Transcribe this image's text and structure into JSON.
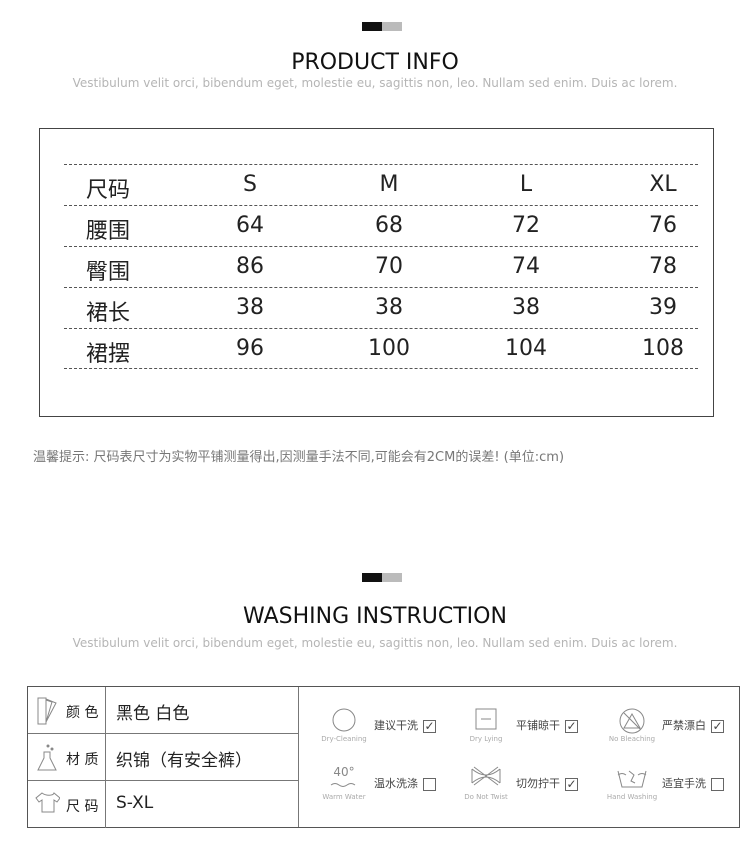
{
  "product_info": {
    "title": "PRODUCT INFO",
    "subtitle": "Vestibulum velit orci, bibendum eget, molestie eu, sagittis non, leo. Nullam sed enim. Duis ac lorem.",
    "table": {
      "header": [
        "尺码",
        "S",
        "M",
        "L",
        "XL"
      ],
      "rows": [
        [
          "腰围",
          "64",
          "68",
          "72",
          "76"
        ],
        [
          "臀围",
          "86",
          "70",
          "74",
          "78"
        ],
        [
          "裙长",
          "38",
          "38",
          "38",
          "39"
        ],
        [
          "裙摆",
          "96",
          "100",
          "104",
          "108"
        ]
      ]
    },
    "note": "温馨提示: 尺码表尺寸为实物平铺测量得出,因测量手法不同,可能会有2CM的误差! (单位:cm)"
  },
  "washing": {
    "title": "WASHING INSTRUCTION",
    "subtitle": "Vestibulum velit orci, bibendum eget, molestie eu, sagittis non, leo. Nullam sed enim. Duis ac lorem.",
    "attributes": [
      {
        "label": "颜 色",
        "value": "黑色  白色",
        "icon": "color-swatch-icon"
      },
      {
        "label": "材 质",
        "value": "织锦（有安全裤）",
        "icon": "flask-icon"
      },
      {
        "label": "尺 码",
        "value": "S-XL",
        "icon": "garment-icon"
      }
    ],
    "care": [
      {
        "en": "Dry-Cleaning",
        "cn": "建议干洗",
        "checked": true,
        "icon": "dry-cleaning-icon"
      },
      {
        "en": "Dry Lying",
        "cn": "平铺晾干",
        "checked": true,
        "icon": "dry-flat-icon"
      },
      {
        "en": "No Bleaching",
        "cn": "严禁漂白",
        "checked": true,
        "icon": "no-bleach-icon"
      },
      {
        "en": "Warm Water",
        "cn": "温水洗涤",
        "checked": false,
        "icon": "warm-water-icon",
        "temp": "40°"
      },
      {
        "en": "Do Not Twist",
        "cn": "切勿拧干",
        "checked": true,
        "icon": "no-wring-icon"
      },
      {
        "en": "Hand Washing",
        "cn": "适宜手洗",
        "checked": false,
        "icon": "hand-wash-icon"
      }
    ]
  },
  "colors": {
    "marker_dark": "#111111",
    "marker_light": "#bbbbbb"
  }
}
